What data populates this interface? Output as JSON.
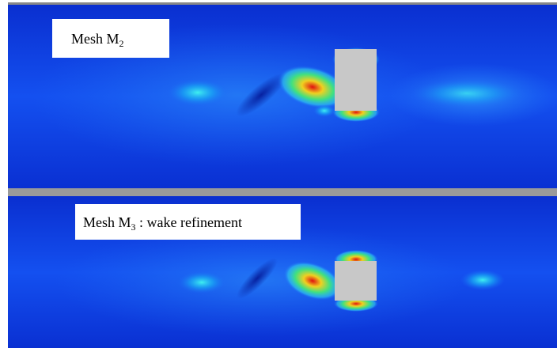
{
  "panels": [
    {
      "label": {
        "text": "Mesh M",
        "subscript": "2"
      }
    },
    {
      "label": {
        "text": "Mesh M",
        "subscript": "3",
        "suffix": " : wake refinement"
      }
    }
  ]
}
